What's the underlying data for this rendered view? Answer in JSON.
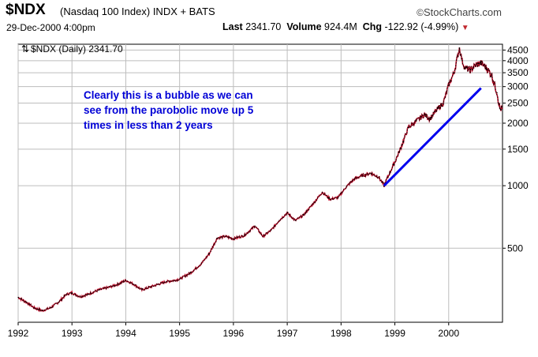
{
  "header": {
    "symbol": "$NDX",
    "index_name": "(Nasdaq 100 Index)",
    "exchange": "INDX + BATS",
    "brand": "StockCharts.com",
    "date": "29-Dec-2000 4:00pm",
    "last_label": "Last",
    "last_value": "2341.70",
    "volume_label": "Volume",
    "volume_value": "924.4M",
    "chg_label": "Chg",
    "chg_value": "-122.92 (-4.99%)"
  },
  "chart_data": {
    "type": "line",
    "legend": "$NDX (Daily) 2341.70",
    "title": "$NDX (Nasdaq 100 Index)",
    "xlabel": "",
    "ylabel": "",
    "yscale": "log",
    "ylim": [
      220,
      4800
    ],
    "xlim": [
      1992.0,
      2001.0
    ],
    "x_ticks": [
      "1992",
      "1993",
      "1994",
      "1995",
      "1996",
      "1997",
      "1998",
      "1999",
      "2000"
    ],
    "x_tick_values": [
      1992,
      1993,
      1994,
      1995,
      1996,
      1997,
      1998,
      1999,
      2000
    ],
    "y_ticks": [
      "4500",
      "4000",
      "3500",
      "3000",
      "2500",
      "2000",
      "1500",
      "1000",
      "500"
    ],
    "y_tick_values": [
      4500,
      4000,
      3500,
      3000,
      2500,
      2000,
      1500,
      1000,
      500
    ],
    "grid": true,
    "series": [
      {
        "name": "$NDX",
        "x": [
          1992.0,
          1992.15,
          1992.3,
          1992.45,
          1992.6,
          1992.75,
          1992.9,
          1993.0,
          1993.15,
          1993.3,
          1993.5,
          1993.7,
          1993.85,
          1994.0,
          1994.15,
          1994.3,
          1994.45,
          1994.6,
          1994.75,
          1994.9,
          1995.0,
          1995.2,
          1995.4,
          1995.55,
          1995.7,
          1995.85,
          1996.0,
          1996.2,
          1996.4,
          1996.55,
          1996.7,
          1996.85,
          1997.0,
          1997.15,
          1997.3,
          1997.5,
          1997.65,
          1997.8,
          1997.95,
          1998.1,
          1998.25,
          1998.4,
          1998.55,
          1998.7,
          1998.8,
          1998.9,
          1999.0,
          1999.1,
          1999.25,
          1999.4,
          1999.55,
          1999.65,
          1999.8,
          1999.9,
          2000.0,
          2000.1,
          2000.2,
          2000.25,
          2000.3,
          2000.4,
          2000.5,
          2000.6,
          2000.7,
          2000.8,
          2000.9,
          2000.95,
          2001.0
        ],
        "values": [
          290,
          275,
          258,
          250,
          258,
          275,
          300,
          305,
          292,
          300,
          315,
          325,
          335,
          350,
          335,
          315,
          325,
          335,
          345,
          350,
          355,
          380,
          420,
          470,
          560,
          570,
          555,
          575,
          640,
          570,
          610,
          680,
          740,
          680,
          720,
          830,
          930,
          860,
          880,
          990,
          1080,
          1120,
          1150,
          1100,
          1000,
          1150,
          1300,
          1500,
          1900,
          2050,
          2200,
          2100,
          2350,
          2500,
          3050,
          3500,
          4600,
          4000,
          3700,
          3600,
          3800,
          3900,
          3700,
          3400,
          2800,
          2350,
          2341.7
        ]
      }
    ],
    "annotation": {
      "text_lines": [
        "Clearly this is a bubble as we can",
        "see from the parobolic move up 5",
        "times in less than 2 years"
      ]
    },
    "trendline": {
      "x": [
        1998.8,
        2000.6
      ],
      "y": [
        1000,
        2950
      ],
      "color": "#0000ee"
    }
  }
}
